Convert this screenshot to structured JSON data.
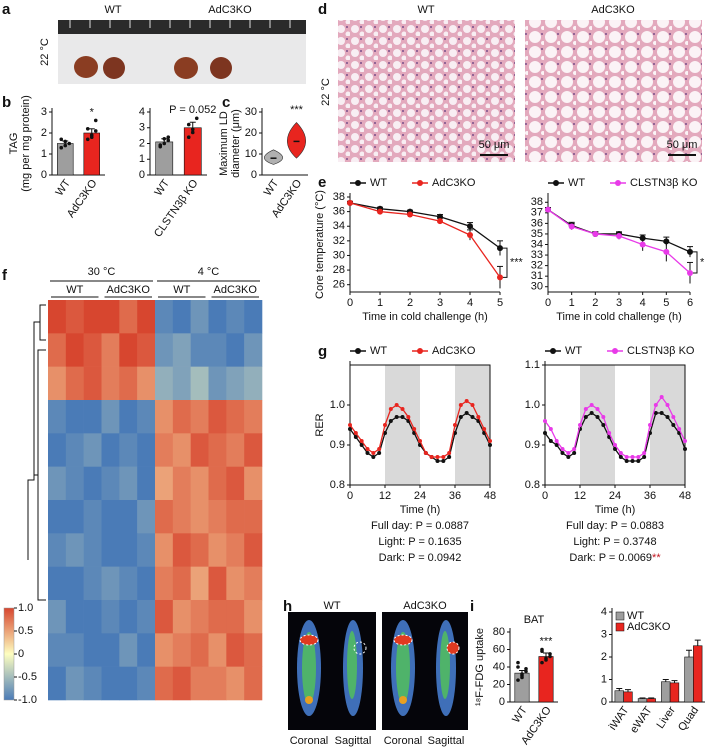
{
  "panel_labels": [
    "a",
    "b",
    "c",
    "d",
    "e",
    "f",
    "g",
    "h",
    "i"
  ],
  "photo": {
    "labels": [
      "WT",
      "AdC3KO"
    ],
    "temperature": "22 °C"
  },
  "histology": {
    "labels": [
      "WT",
      "AdC3KO"
    ],
    "temperature": "22 °C",
    "scale_bars": [
      "50 μm",
      "50 μm"
    ]
  },
  "pet": {
    "groups": [
      "WT",
      "AdC3KO"
    ],
    "views": [
      "Coronal",
      "Sagittal",
      "Coronal",
      "Sagittal"
    ]
  },
  "chart_data": [
    {
      "type": "bar",
      "ylabel": [
        "TAG",
        "(mg per mg protein)"
      ],
      "categories": [
        "WT",
        "AdC3KO"
      ],
      "values": [
        1.5,
        2.0
      ],
      "errors": [
        0.12,
        0.2
      ],
      "points": [
        [
          1.3,
          1.4,
          1.5,
          1.7,
          1.6
        ],
        [
          1.7,
          1.8,
          2.6,
          2.2,
          1.9,
          2.1
        ]
      ],
      "colors": [
        "#9e9e9e",
        "#e8251f"
      ],
      "ylim": [
        0,
        3
      ],
      "yticks": [
        0,
        1,
        2,
        3
      ],
      "annotation": "*",
      "annotation_color": "#c0141e"
    },
    {
      "type": "bar",
      "categories": [
        "WT",
        "CLSTN3β KO"
      ],
      "values": [
        2.1,
        3.0
      ],
      "errors": [
        0.2,
        0.35
      ],
      "points": [
        [
          1.8,
          2.0,
          2.4,
          1.9,
          2.3,
          2.2
        ],
        [
          2.4,
          2.7,
          3.6,
          3.2,
          2.9
        ]
      ],
      "colors": [
        "#9e9e9e",
        "#e8251f"
      ],
      "ylim": [
        0,
        4
      ],
      "yticks": [
        0,
        1,
        2,
        3,
        4
      ],
      "annotation": "P = 0.052",
      "annotation_color": "#c0141e"
    },
    {
      "type": "violin",
      "ylabel": [
        "Maximum LD",
        "diameter (μm)"
      ],
      "categories": [
        "WT",
        "AdC3KO"
      ],
      "values": [
        8,
        16
      ],
      "ranges": [
        [
          5,
          12
        ],
        [
          8,
          25
        ]
      ],
      "colors": [
        "#b0b0b0",
        "#e8251f"
      ],
      "ylim": [
        0,
        30
      ],
      "yticks": [
        0,
        10,
        20,
        30
      ],
      "annotation": "***",
      "annotation_color": "#c0141e"
    },
    {
      "type": "line",
      "ylabel": "Core temperature (°C)",
      "xlabel": "Time in cold challenge (h)",
      "x": [
        0,
        1,
        2,
        3,
        4,
        5
      ],
      "series": [
        {
          "name": "WT",
          "color": "#111111",
          "values": [
            37.2,
            36.4,
            36.0,
            35.3,
            34.0,
            31.0
          ],
          "errors": [
            0.2,
            0.2,
            0.2,
            0.3,
            0.5,
            1.0
          ]
        },
        {
          "name": "AdC3KO",
          "color": "#e8251f",
          "values": [
            37.2,
            36.0,
            35.6,
            34.7,
            32.8,
            27.0
          ],
          "errors": [
            0.2,
            0.2,
            0.2,
            0.4,
            0.7,
            1.5
          ]
        }
      ],
      "xlim": [
        0,
        5
      ],
      "xticks": [
        0,
        1,
        2,
        3,
        4,
        5
      ],
      "ylim": [
        25,
        38
      ],
      "yticks": [
        26,
        28,
        30,
        32,
        34,
        36,
        38
      ],
      "annotation": "***",
      "annotation_color": "#c0141e"
    },
    {
      "type": "line",
      "xlabel": "Time in cold challenge (h)",
      "x": [
        0,
        1,
        2,
        3,
        4,
        5,
        6
      ],
      "series": [
        {
          "name": "WT",
          "color": "#111111",
          "values": [
            37.3,
            35.8,
            35.0,
            35.0,
            34.6,
            34.3,
            33.3
          ],
          "errors": [
            0.2,
            0.3,
            0.2,
            0.2,
            0.3,
            0.4,
            0.5
          ]
        },
        {
          "name": "CLSTN3β KO",
          "color": "#e83ae8",
          "values": [
            37.3,
            35.7,
            35.0,
            34.8,
            34.0,
            33.3,
            31.3
          ],
          "errors": [
            0.2,
            0.3,
            0.2,
            0.3,
            0.6,
            0.9,
            1.0
          ]
        }
      ],
      "xlim": [
        0,
        6
      ],
      "xticks": [
        0,
        1,
        2,
        3,
        4,
        5,
        6
      ],
      "ylim": [
        29.5,
        38.5
      ],
      "yticks": [
        30,
        31,
        32,
        33,
        34,
        35,
        36,
        37,
        38
      ],
      "annotation": "*",
      "annotation_color": "#c0141e"
    },
    {
      "type": "line",
      "ylabel": "RER",
      "xlabel": "Time (h)",
      "x": [
        0,
        2,
        4,
        6,
        8,
        10,
        12,
        14,
        16,
        18,
        20,
        22,
        24,
        26,
        28,
        30,
        32,
        34,
        36,
        38,
        40,
        42,
        44,
        46,
        48
      ],
      "series": [
        {
          "name": "WT",
          "color": "#111111",
          "values": [
            0.94,
            0.92,
            0.9,
            0.88,
            0.87,
            0.88,
            0.93,
            0.96,
            0.97,
            0.97,
            0.96,
            0.93,
            0.9,
            0.88,
            0.87,
            0.86,
            0.86,
            0.87,
            0.93,
            0.97,
            0.98,
            0.97,
            0.96,
            0.93,
            0.9
          ]
        },
        {
          "name": "AdC3KO",
          "color": "#e8251f",
          "values": [
            0.95,
            0.93,
            0.91,
            0.89,
            0.88,
            0.89,
            0.95,
            0.99,
            1.0,
            0.99,
            0.97,
            0.94,
            0.91,
            0.88,
            0.87,
            0.87,
            0.87,
            0.88,
            0.95,
            1.0,
            1.01,
            1.0,
            0.97,
            0.94,
            0.91
          ]
        }
      ],
      "dark_periods": [
        [
          12,
          24
        ],
        [
          36,
          48
        ]
      ],
      "xlim": [
        0,
        48
      ],
      "xticks": [
        0,
        12,
        24,
        36,
        48
      ],
      "ylim": [
        0.8,
        1.1
      ],
      "yticks": [
        0.8,
        0.9,
        {
          "value": 1,
          "label": "1.0"
        }
      ],
      "stats": [
        "Full day: P = 0.0887",
        "Light: P = 0.1635",
        "Dark: P = 0.0942"
      ]
    },
    {
      "type": "line",
      "xlabel": "Time (h)",
      "x": [
        0,
        2,
        4,
        6,
        8,
        10,
        12,
        14,
        16,
        18,
        20,
        22,
        24,
        26,
        28,
        30,
        32,
        34,
        36,
        38,
        40,
        42,
        44,
        46,
        48
      ],
      "series": [
        {
          "name": "WT",
          "color": "#111111",
          "values": [
            0.93,
            0.91,
            0.9,
            0.88,
            0.87,
            0.88,
            0.94,
            0.97,
            0.98,
            0.97,
            0.95,
            0.92,
            0.89,
            0.87,
            0.86,
            0.86,
            0.86,
            0.87,
            0.93,
            0.98,
            0.98,
            0.97,
            0.95,
            0.93,
            0.89
          ]
        },
        {
          "name": "CLSTN3β KO",
          "color": "#e83ae8",
          "values": [
            0.96,
            0.94,
            0.91,
            0.89,
            0.88,
            0.89,
            0.95,
            0.99,
            1.0,
            0.99,
            0.97,
            0.93,
            0.9,
            0.88,
            0.87,
            0.87,
            0.87,
            0.88,
            0.95,
            1.0,
            1.02,
            1.0,
            0.97,
            0.94,
            0.91
          ]
        }
      ],
      "dark_periods": [
        [
          12,
          24
        ],
        [
          36,
          48
        ]
      ],
      "xlim": [
        0,
        48
      ],
      "xticks": [
        0,
        12,
        24,
        36,
        48
      ],
      "ylim": [
        0.8,
        1.1
      ],
      "yticks": [
        0.8,
        0.9,
        {
          "value": 1,
          "label": "1.0"
        },
        1.1
      ],
      "stats": [
        "Full day: P = 0.0883",
        "Light: P = 0.3748",
        "Dark: P = 0.0069"
      ],
      "stats_mark": "**",
      "stats_mark_color": "#c0141e"
    },
    {
      "type": "heatmap",
      "conditions": [
        "30 °C",
        "4 °C"
      ],
      "groups": [
        "WT",
        "AdC3KO",
        "WT",
        "AdC3KO"
      ],
      "colorscale": [
        "#4a7bb7",
        "#fefec0",
        "#d7462f"
      ],
      "colorbar_ticks": [
        {
          "value": 1,
          "label": "1.0"
        },
        0.5,
        0,
        -0.5,
        {
          "value": -1,
          "label": "-1.0"
        }
      ],
      "rows": [
        [
          1.1,
          0.9,
          1.0,
          1.2,
          0.8,
          1.0,
          -0.9,
          -1.0,
          -0.8,
          -1.0,
          -0.9,
          -1.1
        ],
        [
          0.8,
          1.0,
          0.9,
          0.7,
          1.0,
          0.9,
          -0.8,
          -0.7,
          -0.9,
          -0.9,
          -1.0,
          -0.8
        ],
        [
          0.6,
          0.8,
          0.9,
          0.7,
          0.8,
          0.6,
          -0.6,
          -0.7,
          -0.5,
          -0.8,
          -0.7,
          -0.6
        ],
        [
          -0.9,
          -1.0,
          -1.1,
          -0.8,
          -1.0,
          -0.9,
          0.6,
          0.8,
          0.7,
          0.9,
          0.8,
          0.7
        ],
        [
          -1.0,
          -0.9,
          -0.8,
          -1.1,
          -0.9,
          -1.0,
          0.7,
          0.6,
          0.9,
          0.8,
          0.7,
          0.9
        ],
        [
          -0.8,
          -0.9,
          -1.0,
          -0.9,
          -0.8,
          -1.1,
          0.5,
          0.7,
          0.6,
          0.8,
          0.9,
          0.6
        ],
        [
          -1.1,
          -1.0,
          -0.9,
          -1.0,
          -1.0,
          -0.8,
          0.8,
          0.7,
          0.6,
          0.7,
          0.8,
          0.8
        ],
        [
          -0.9,
          -0.8,
          -0.9,
          -1.0,
          -1.1,
          -0.9,
          0.6,
          0.9,
          0.8,
          0.6,
          0.7,
          0.9
        ],
        [
          -1.0,
          -1.1,
          -0.9,
          -0.8,
          -0.9,
          -1.0,
          0.7,
          0.8,
          0.5,
          0.9,
          0.6,
          0.7
        ],
        [
          -0.8,
          -1.0,
          -1.0,
          -0.9,
          -1.0,
          -0.9,
          0.9,
          0.6,
          0.7,
          0.8,
          0.8,
          0.6
        ],
        [
          -0.9,
          -0.9,
          -1.1,
          -1.0,
          -0.8,
          -1.0,
          0.6,
          0.7,
          0.8,
          0.6,
          0.9,
          0.8
        ],
        [
          -1.0,
          -0.8,
          -0.9,
          -1.1,
          -1.0,
          -0.9,
          0.8,
          0.9,
          0.7,
          0.7,
          0.6,
          0.8
        ]
      ]
    },
    {
      "type": "bar",
      "title": "BAT",
      "ylabel": "¹⁸F-FDG uptake",
      "categories": [
        "WT",
        "AdC3KO"
      ],
      "values": [
        33,
        52
      ],
      "errors": [
        3,
        4
      ],
      "points": [
        [
          25,
          30,
          35,
          40,
          28,
          38,
          45,
          32
        ],
        [
          45,
          50,
          55,
          60,
          48,
          52,
          58
        ]
      ],
      "colors": [
        "#9e9e9e",
        "#e8251f"
      ],
      "ylim": [
        0,
        80
      ],
      "yticks": [
        0,
        20,
        40,
        60,
        80
      ],
      "annotation": "***",
      "annotation_color": "#c0141e"
    },
    {
      "type": "bar",
      "categories": [
        "iWAT",
        "eWAT",
        "Liver",
        "Quad"
      ],
      "series": [
        {
          "name": "WT",
          "color": "#9e9e9e",
          "values": [
            0.5,
            0.15,
            0.9,
            2.0
          ],
          "errors": [
            0.1,
            0.03,
            0.1,
            0.3
          ]
        },
        {
          "name": "AdC3KO",
          "color": "#e8251f",
          "values": [
            0.45,
            0.15,
            0.85,
            2.5
          ],
          "errors": [
            0.1,
            0.03,
            0.1,
            0.25
          ]
        }
      ],
      "ylim": [
        0,
        4
      ],
      "yticks": [
        0,
        1,
        2,
        3,
        4
      ]
    }
  ]
}
